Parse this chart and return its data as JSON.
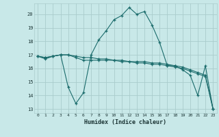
{
  "xlabel": "Humidex (Indice chaleur)",
  "bg_color": "#c8e8e8",
  "grid_color": "#aacccc",
  "line_color": "#1a6b6b",
  "xlim": [
    -0.5,
    23.5
  ],
  "ylim": [
    12.7,
    20.8
  ],
  "yticks": [
    13,
    14,
    15,
    16,
    17,
    18,
    19,
    20
  ],
  "xticks": [
    0,
    1,
    2,
    3,
    4,
    5,
    6,
    7,
    8,
    9,
    10,
    11,
    12,
    13,
    14,
    15,
    16,
    17,
    18,
    19,
    20,
    21,
    22,
    23
  ],
  "series": [
    {
      "x": [
        0,
        1,
        2,
        3,
        4,
        5,
        6,
        7,
        8,
        9,
        10,
        11,
        12,
        13,
        14,
        15,
        16,
        17,
        18,
        19,
        20,
        21,
        22,
        23
      ],
      "y": [
        16.9,
        16.7,
        16.9,
        17.0,
        14.6,
        13.4,
        14.2,
        17.0,
        18.1,
        18.8,
        19.6,
        19.9,
        20.5,
        20.0,
        20.2,
        19.2,
        17.9,
        16.2,
        16.2,
        15.9,
        15.5,
        14.0,
        16.2,
        13.0
      ]
    },
    {
      "x": [
        0,
        1,
        2,
        3,
        4,
        5,
        6,
        7,
        8,
        9,
        10,
        11,
        12,
        13,
        14,
        15,
        16,
        17,
        18,
        19,
        20,
        21,
        22,
        23
      ],
      "y": [
        16.9,
        16.8,
        16.9,
        17.0,
        17.0,
        16.8,
        16.6,
        16.6,
        16.6,
        16.6,
        16.6,
        16.5,
        16.5,
        16.4,
        16.4,
        16.3,
        16.3,
        16.2,
        16.1,
        16.0,
        15.8,
        15.6,
        15.4,
        13.0
      ]
    },
    {
      "x": [
        0,
        1,
        2,
        3,
        4,
        5,
        6,
        7,
        8,
        9,
        10,
        11,
        12,
        13,
        14,
        15,
        16,
        17,
        18,
        19,
        20,
        21,
        22,
        23
      ],
      "y": [
        16.9,
        16.8,
        16.9,
        17.0,
        17.0,
        16.9,
        16.8,
        16.8,
        16.7,
        16.7,
        16.6,
        16.6,
        16.5,
        16.5,
        16.5,
        16.4,
        16.4,
        16.3,
        16.2,
        16.1,
        15.9,
        15.7,
        15.5,
        13.0
      ]
    }
  ]
}
